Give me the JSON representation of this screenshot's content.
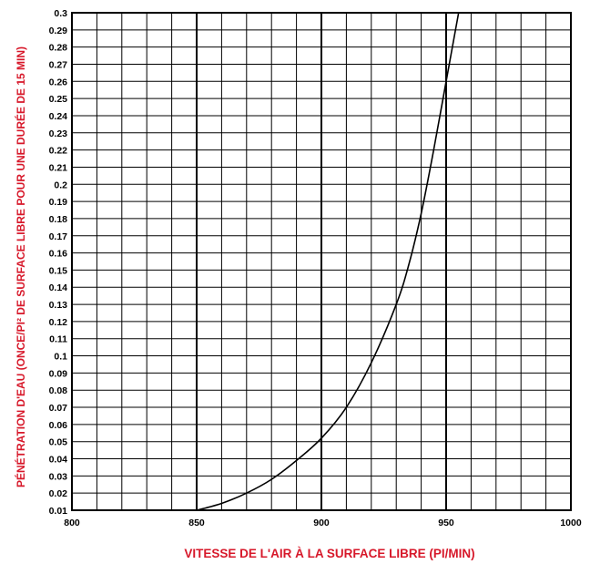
{
  "chart_data": {
    "type": "line",
    "title": "",
    "xlabel": "VITESSE DE L'AIR À LA SURFACE LIBRE (PI/MIN)",
    "ylabel": "PÉNÉTRATION D'EAU (ONCE/PI² DE SURFACE LIBRE POUR UNE DURÉE DE 15 MIN)",
    "xlim": [
      800,
      1000
    ],
    "ylim": [
      0.01,
      0.3
    ],
    "x_ticks": [
      "800",
      "850",
      "900",
      "950",
      "1000"
    ],
    "y_ticks": [
      "0.01",
      "0.02",
      "0.03",
      "0.04",
      "0.05",
      "0.06",
      "0.07",
      "0.08",
      "0.09",
      "0.1",
      "0.11",
      "0.12",
      "0.13",
      "0.14",
      "0.15",
      "0.16",
      "0.17",
      "0.18",
      "0.19",
      "0.2",
      "0.21",
      "0.22",
      "0.23",
      "0.24",
      "0.25",
      "0.26",
      "0.27",
      "0.28",
      "0.29",
      "0.3"
    ],
    "grid": true,
    "series": [
      {
        "x": [
          850,
          860,
          870,
          880,
          890,
          900,
          910,
          920,
          930,
          935,
          940,
          945,
          950,
          955
        ],
        "y": [
          0.01,
          0.014,
          0.02,
          0.028,
          0.039,
          0.052,
          0.07,
          0.096,
          0.13,
          0.153,
          0.183,
          0.22,
          0.26,
          0.3
        ]
      }
    ]
  }
}
